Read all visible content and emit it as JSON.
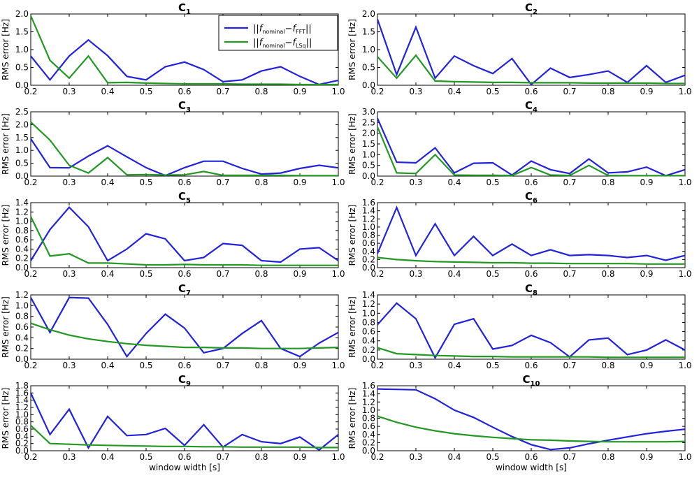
{
  "chart_data": [
    {
      "type": "line",
      "title_main": "C",
      "title_sub": "1",
      "ylabel": "RMS error [Hz]",
      "xlabel": "",
      "xlim": [
        0.2,
        1.0
      ],
      "ylim": [
        0,
        2.0
      ],
      "xtick_step": 0.1,
      "ytick_step": 0.5,
      "ytick_decimals": 1,
      "x": [
        0.2,
        0.25,
        0.3,
        0.35,
        0.4,
        0.45,
        0.5,
        0.55,
        0.6,
        0.65,
        0.7,
        0.75,
        0.8,
        0.85,
        0.9,
        0.95,
        1.0
      ],
      "series": [
        {
          "name": "fft",
          "color": "#2222dd",
          "values": [
            0.82,
            0.15,
            0.82,
            1.27,
            0.83,
            0.25,
            0.15,
            0.52,
            0.65,
            0.44,
            0.1,
            0.15,
            0.4,
            0.52,
            0.25,
            0.02,
            0.14
          ]
        },
        {
          "name": "lsq",
          "color": "#229922",
          "values": [
            1.95,
            0.7,
            0.2,
            0.82,
            0.07,
            0.08,
            0.06,
            0.05,
            0.04,
            0.04,
            0.04,
            0.03,
            0.03,
            0.03,
            0.02,
            0.02,
            0.02
          ]
        }
      ]
    },
    {
      "type": "line",
      "title_main": "C",
      "title_sub": "2",
      "ylabel": "RMS error [Hz]",
      "xlabel": "",
      "xlim": [
        0.2,
        1.0
      ],
      "ylim": [
        0,
        2.0
      ],
      "xtick_step": 0.1,
      "ytick_step": 0.5,
      "ytick_decimals": 1,
      "x": [
        0.2,
        0.25,
        0.3,
        0.35,
        0.4,
        0.45,
        0.5,
        0.55,
        0.6,
        0.65,
        0.7,
        0.75,
        0.8,
        0.85,
        0.9,
        0.95,
        1.0
      ],
      "series": [
        {
          "name": "fft",
          "color": "#2222dd",
          "values": [
            1.85,
            0.3,
            1.63,
            0.2,
            0.82,
            0.55,
            0.33,
            0.75,
            0.02,
            0.48,
            0.22,
            0.3,
            0.4,
            0.08,
            0.55,
            0.08,
            0.28
          ]
        },
        {
          "name": "lsq",
          "color": "#229922",
          "values": [
            0.8,
            0.2,
            0.84,
            0.12,
            0.1,
            0.09,
            0.08,
            0.08,
            0.07,
            0.07,
            0.07,
            0.06,
            0.06,
            0.06,
            0.06,
            0.05,
            0.05
          ]
        }
      ]
    },
    {
      "type": "line",
      "title_main": "C",
      "title_sub": "3",
      "ylabel": "RMS error [Hz]",
      "xlabel": "",
      "xlim": [
        0.2,
        1.0
      ],
      "ylim": [
        0,
        2.5
      ],
      "xtick_step": 0.1,
      "ytick_step": 0.5,
      "ytick_decimals": 1,
      "x": [
        0.2,
        0.25,
        0.3,
        0.35,
        0.4,
        0.45,
        0.5,
        0.55,
        0.6,
        0.65,
        0.7,
        0.75,
        0.8,
        0.85,
        0.9,
        0.95,
        1.0
      ],
      "series": [
        {
          "name": "fft",
          "color": "#2222dd",
          "values": [
            1.45,
            0.33,
            0.32,
            0.78,
            1.18,
            0.75,
            0.33,
            0.02,
            0.33,
            0.58,
            0.58,
            0.3,
            0.08,
            0.12,
            0.3,
            0.42,
            0.32
          ]
        },
        {
          "name": "lsq",
          "color": "#229922",
          "values": [
            2.1,
            1.4,
            0.42,
            0.12,
            0.72,
            0.05,
            0.06,
            0.04,
            0.05,
            0.18,
            0.03,
            0.03,
            0.03,
            0.03,
            0.02,
            0.02,
            0.02
          ]
        }
      ]
    },
    {
      "type": "line",
      "title_main": "C",
      "title_sub": "4",
      "ylabel": "RMS error [Hz]",
      "xlabel": "",
      "xlim": [
        0.2,
        1.0
      ],
      "ylim": [
        0,
        3.0
      ],
      "xtick_step": 0.1,
      "ytick_step": 0.5,
      "ytick_decimals": 1,
      "x": [
        0.2,
        0.25,
        0.3,
        0.35,
        0.4,
        0.45,
        0.5,
        0.55,
        0.6,
        0.65,
        0.7,
        0.75,
        0.8,
        0.85,
        0.9,
        0.95,
        1.0
      ],
      "series": [
        {
          "name": "fft",
          "color": "#2222dd",
          "values": [
            2.7,
            0.65,
            0.62,
            1.32,
            0.15,
            0.6,
            0.62,
            0.05,
            0.7,
            0.3,
            0.12,
            0.8,
            0.15,
            0.2,
            0.42,
            0.02,
            0.3
          ]
        },
        {
          "name": "lsq",
          "color": "#229922",
          "values": [
            2.3,
            0.15,
            0.12,
            1.0,
            0.05,
            0.04,
            0.04,
            0.03,
            0.4,
            0.05,
            0.03,
            0.5,
            0.03,
            0.02,
            0.02,
            0.02,
            0.02
          ]
        }
      ]
    },
    {
      "type": "line",
      "title_main": "C",
      "title_sub": "5",
      "ylabel": "RMS error [Hz]",
      "xlabel": "",
      "xlim": [
        0.2,
        1.0
      ],
      "ylim": [
        0,
        1.4
      ],
      "xtick_step": 0.1,
      "ytick_step": 0.2,
      "ytick_decimals": 1,
      "x": [
        0.2,
        0.25,
        0.3,
        0.35,
        0.4,
        0.45,
        0.5,
        0.55,
        0.6,
        0.65,
        0.7,
        0.75,
        0.8,
        0.85,
        0.9,
        0.95,
        1.0
      ],
      "series": [
        {
          "name": "fft",
          "color": "#2222dd",
          "values": [
            0.15,
            0.82,
            1.3,
            0.88,
            0.15,
            0.4,
            0.73,
            0.62,
            0.15,
            0.22,
            0.52,
            0.48,
            0.15,
            0.12,
            0.4,
            0.43,
            0.15
          ]
        },
        {
          "name": "lsq",
          "color": "#229922",
          "values": [
            1.1,
            0.25,
            0.3,
            0.1,
            0.1,
            0.08,
            0.06,
            0.06,
            0.07,
            0.06,
            0.06,
            0.06,
            0.05,
            0.05,
            0.05,
            0.05,
            0.05
          ]
        }
      ]
    },
    {
      "type": "line",
      "title_main": "C",
      "title_sub": "6",
      "ylabel": "RMS error [Hz]",
      "xlabel": "",
      "xlim": [
        0.2,
        1.0
      ],
      "ylim": [
        0,
        1.6
      ],
      "xtick_step": 0.1,
      "ytick_step": 0.2,
      "ytick_decimals": 1,
      "x": [
        0.2,
        0.25,
        0.3,
        0.35,
        0.4,
        0.45,
        0.5,
        0.55,
        0.6,
        0.65,
        0.7,
        0.75,
        0.8,
        0.85,
        0.9,
        0.95,
        1.0
      ],
      "series": [
        {
          "name": "fft",
          "color": "#2222dd",
          "values": [
            0.35,
            1.48,
            0.3,
            1.08,
            0.3,
            0.77,
            0.3,
            0.58,
            0.3,
            0.44,
            0.3,
            0.32,
            0.3,
            0.25,
            0.3,
            0.18,
            0.3
          ]
        },
        {
          "name": "lsq",
          "color": "#229922",
          "values": [
            0.25,
            0.2,
            0.17,
            0.15,
            0.14,
            0.13,
            0.12,
            0.12,
            0.11,
            0.11,
            0.1,
            0.1,
            0.1,
            0.1,
            0.09,
            0.09,
            0.09
          ]
        }
      ]
    },
    {
      "type": "line",
      "title_main": "C",
      "title_sub": "7",
      "ylabel": "RMS error [Hz]",
      "xlabel": "",
      "xlim": [
        0.2,
        1.0
      ],
      "ylim": [
        0,
        1.2
      ],
      "xtick_step": 0.1,
      "ytick_step": 0.2,
      "ytick_decimals": 1,
      "x": [
        0.2,
        0.25,
        0.3,
        0.35,
        0.4,
        0.45,
        0.5,
        0.55,
        0.6,
        0.65,
        0.7,
        0.75,
        0.8,
        0.85,
        0.9,
        0.95,
        1.0
      ],
      "series": [
        {
          "name": "fft",
          "color": "#2222dd",
          "values": [
            1.15,
            0.5,
            1.15,
            1.14,
            0.65,
            0.05,
            0.48,
            0.84,
            0.58,
            0.12,
            0.2,
            0.48,
            0.72,
            0.2,
            0.05,
            0.3,
            0.5
          ]
        },
        {
          "name": "lsq",
          "color": "#229922",
          "values": [
            0.67,
            0.55,
            0.45,
            0.38,
            0.33,
            0.29,
            0.26,
            0.24,
            0.22,
            0.22,
            0.21,
            0.21,
            0.2,
            0.2,
            0.2,
            0.21,
            0.22
          ]
        }
      ]
    },
    {
      "type": "line",
      "title_main": "C",
      "title_sub": "8",
      "ylabel": "RMS error [Hz]",
      "xlabel": "",
      "xlim": [
        0.2,
        1.0
      ],
      "ylim": [
        0,
        1.4
      ],
      "xtick_step": 0.1,
      "ytick_step": 0.2,
      "ytick_decimals": 1,
      "x": [
        0.2,
        0.25,
        0.3,
        0.35,
        0.4,
        0.45,
        0.5,
        0.55,
        0.6,
        0.65,
        0.7,
        0.75,
        0.8,
        0.85,
        0.9,
        0.95,
        1.0
      ],
      "series": [
        {
          "name": "fft",
          "color": "#2222dd",
          "values": [
            0.75,
            1.22,
            0.88,
            0.03,
            0.76,
            0.88,
            0.22,
            0.3,
            0.52,
            0.36,
            0.05,
            0.42,
            0.46,
            0.1,
            0.2,
            0.42,
            0.2
          ]
        },
        {
          "name": "lsq",
          "color": "#229922",
          "values": [
            0.25,
            0.12,
            0.1,
            0.08,
            0.07,
            0.06,
            0.06,
            0.05,
            0.05,
            0.05,
            0.05,
            0.05,
            0.04,
            0.04,
            0.04,
            0.04,
            0.04
          ]
        }
      ]
    },
    {
      "type": "line",
      "title_main": "C",
      "title_sub": "9",
      "ylabel": "RMS error [Hz]",
      "xlabel": "window width [s]",
      "xlim": [
        0.2,
        1.0
      ],
      "ylim": [
        0,
        1.8
      ],
      "xtick_step": 0.1,
      "ytick_step": 0.2,
      "ytick_decimals": 1,
      "x": [
        0.2,
        0.25,
        0.3,
        0.35,
        0.4,
        0.45,
        0.5,
        0.55,
        0.6,
        0.65,
        0.7,
        0.75,
        0.8,
        0.85,
        0.9,
        0.95,
        1.0
      ],
      "series": [
        {
          "name": "fft",
          "color": "#2222dd",
          "values": [
            1.6,
            0.45,
            1.15,
            0.08,
            0.95,
            0.42,
            0.45,
            0.62,
            0.15,
            0.72,
            0.1,
            0.45,
            0.25,
            0.2,
            0.38,
            0.02,
            0.45
          ]
        },
        {
          "name": "lsq",
          "color": "#229922",
          "values": [
            0.7,
            0.2,
            0.18,
            0.16,
            0.15,
            0.14,
            0.13,
            0.12,
            0.12,
            0.11,
            0.11,
            0.1,
            0.1,
            0.1,
            0.1,
            0.09,
            0.09
          ]
        }
      ]
    },
    {
      "type": "line",
      "title_main": "C",
      "title_sub": "10",
      "ylabel": "RMS error [Hz]",
      "xlabel": "window width [s]",
      "xlim": [
        0.2,
        1.0
      ],
      "ylim": [
        0,
        1.6
      ],
      "xtick_step": 0.1,
      "ytick_step": 0.2,
      "ytick_decimals": 1,
      "x": [
        0.2,
        0.25,
        0.3,
        0.35,
        0.4,
        0.45,
        0.5,
        0.55,
        0.6,
        0.65,
        0.7,
        0.75,
        0.8,
        0.85,
        0.9,
        0.95,
        1.0
      ],
      "series": [
        {
          "name": "fft",
          "color": "#2222dd",
          "values": [
            1.52,
            1.51,
            1.5,
            1.28,
            1.0,
            0.82,
            0.58,
            0.35,
            0.15,
            0.03,
            0.07,
            0.17,
            0.26,
            0.34,
            0.42,
            0.48,
            0.53
          ]
        },
        {
          "name": "lsq",
          "color": "#229922",
          "values": [
            0.85,
            0.7,
            0.58,
            0.49,
            0.42,
            0.37,
            0.33,
            0.3,
            0.27,
            0.26,
            0.24,
            0.23,
            0.22,
            0.22,
            0.22,
            0.22,
            0.23
          ]
        }
      ]
    }
  ],
  "legend": {
    "entries": [
      {
        "color": "#2222dd",
        "pre": "||",
        "f1": "f",
        "sub1": "nominal",
        "minus": "−",
        "f2": "f",
        "sub2": "FFT",
        "post": "||"
      },
      {
        "color": "#229922",
        "pre": "||",
        "f1": "f",
        "sub1": "nominal",
        "minus": "−",
        "f2": "f",
        "sub2": "LSq",
        "post": "||"
      }
    ]
  }
}
